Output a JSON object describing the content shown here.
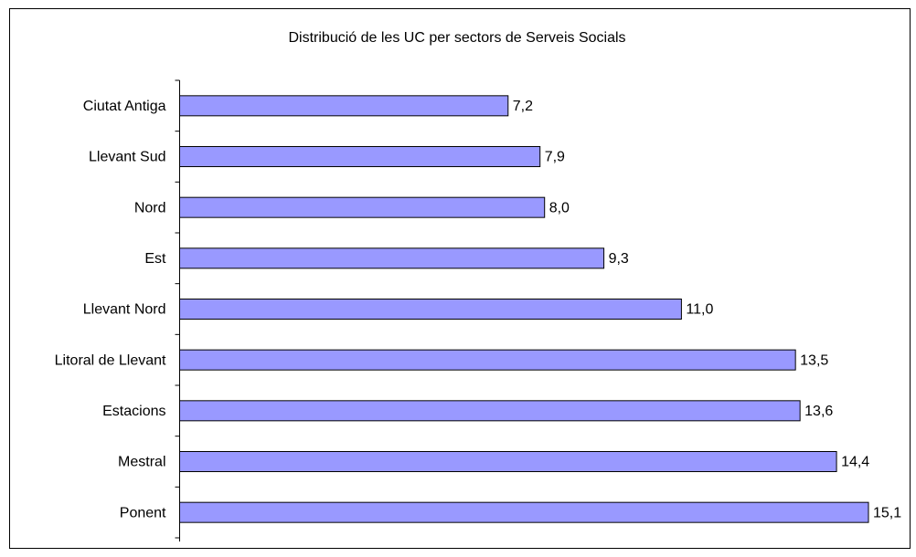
{
  "chart_data": {
    "type": "hbar",
    "title": "Distribució de les UC per sectors de Serveis Socials",
    "categories": [
      "Ciutat Antiga",
      "Llevant Sud",
      "Nord",
      "Est",
      "Llevant Nord",
      "Litoral de Llevant",
      "Estacions",
      "Mestral",
      "Ponent"
    ],
    "values": [
      7.2,
      7.9,
      8.0,
      9.3,
      11.0,
      13.5,
      13.6,
      14.4,
      15.1
    ],
    "value_labels": [
      "7,2",
      "7,9",
      "8,0",
      "9,3",
      "11,0",
      "13,5",
      "13,6",
      "14,4",
      "15,1"
    ],
    "color": "#9999ff"
  }
}
